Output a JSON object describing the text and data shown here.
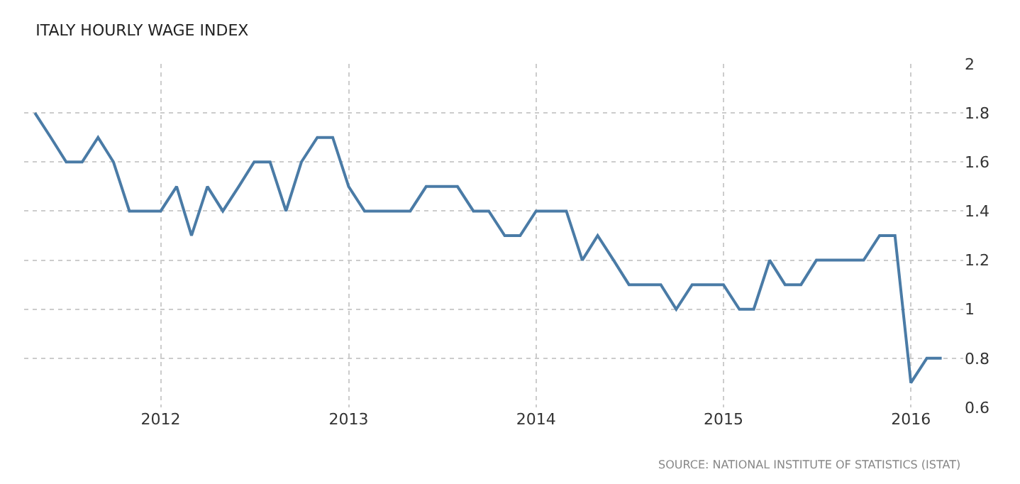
{
  "chart_data": {
    "type": "line",
    "title": "ITALY HOURLY WAGE INDEX",
    "annotations": [
      "SOURCE: NATIONAL INSTITUTE OF STATISTICS (ISTAT)"
    ],
    "x": [
      "2011-05",
      "2011-06",
      "2011-07",
      "2011-08",
      "2011-09",
      "2011-10",
      "2011-11",
      "2011-12",
      "2012-01",
      "2012-02",
      "2012-03",
      "2012-04",
      "2012-05",
      "2012-06",
      "2012-07",
      "2012-08",
      "2012-09",
      "2012-10",
      "2012-11",
      "2012-12",
      "2013-01",
      "2013-02",
      "2013-03",
      "2013-04",
      "2013-05",
      "2013-06",
      "2013-07",
      "2013-08",
      "2013-09",
      "2013-10",
      "2013-11",
      "2013-12",
      "2014-01",
      "2014-02",
      "2014-03",
      "2014-04",
      "2014-05",
      "2014-06",
      "2014-07",
      "2014-08",
      "2014-09",
      "2014-10",
      "2014-11",
      "2014-12",
      "2015-01",
      "2015-02",
      "2015-03",
      "2015-04",
      "2015-05",
      "2015-06",
      "2015-07",
      "2015-08",
      "2015-09",
      "2015-10",
      "2015-11",
      "2015-12",
      "2016-01",
      "2016-02",
      "2016-03"
    ],
    "series": [
      {
        "color": "#4a7ba6",
        "values": [
          1.8,
          1.7,
          1.6,
          1.6,
          1.7,
          1.6,
          1.4,
          1.4,
          1.4,
          1.5,
          1.3,
          1.5,
          1.4,
          1.5,
          1.6,
          1.6,
          1.4,
          1.6,
          1.7,
          1.7,
          1.5,
          1.4,
          1.4,
          1.4,
          1.4,
          1.5,
          1.5,
          1.5,
          1.4,
          1.4,
          1.3,
          1.3,
          1.4,
          1.4,
          1.4,
          1.2,
          1.3,
          1.2,
          1.1,
          1.1,
          1.1,
          1.0,
          1.1,
          1.1,
          1.1,
          1.0,
          1.0,
          1.2,
          1.1,
          1.1,
          1.2,
          1.2,
          1.2,
          1.2,
          1.3,
          1.3,
          0.7,
          0.8,
          0.8
        ]
      }
    ],
    "xlim": [
      "2011-04-10",
      "2016-04-12"
    ],
    "xticks": [
      {
        "value": "2012-01-01",
        "label": "2012"
      },
      {
        "value": "2013-01-01",
        "label": "2013"
      },
      {
        "value": "2014-01-01",
        "label": "2014"
      },
      {
        "value": "2015-01-01",
        "label": "2015"
      },
      {
        "value": "2016-01-01",
        "label": "2016"
      }
    ],
    "ylim": [
      0.6,
      2
    ],
    "yticks": [
      0.6,
      0.8,
      1,
      1.2,
      1.4,
      1.6,
      1.8,
      2
    ],
    "grid": true,
    "marker": "none",
    "line_style": "solid"
  }
}
